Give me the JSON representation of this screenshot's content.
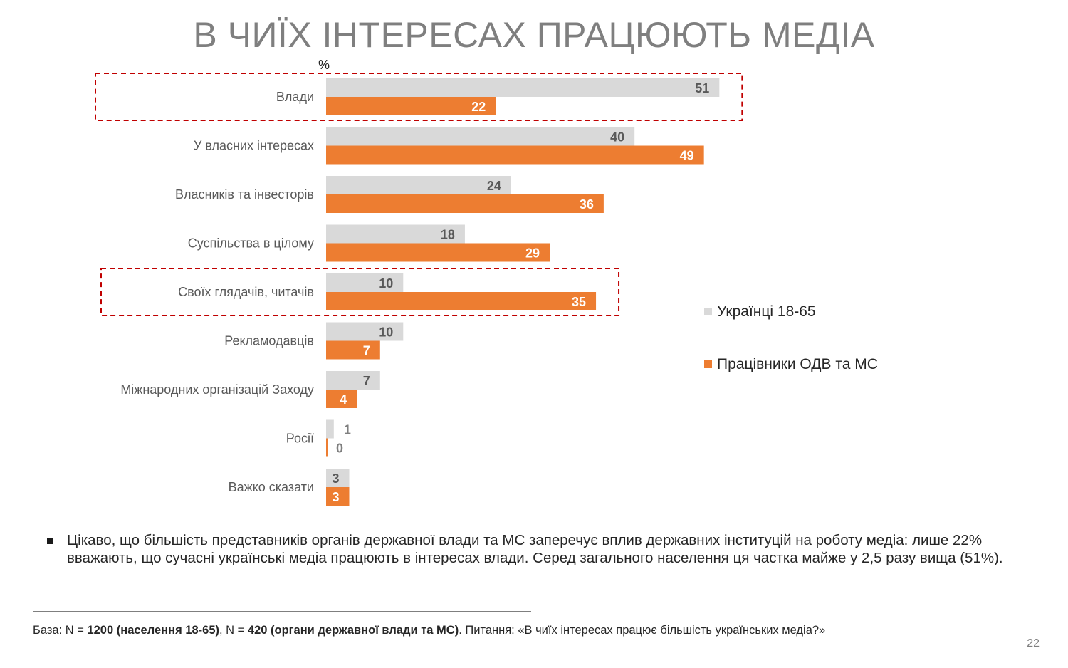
{
  "title": "В ЧИЇХ ІНТЕРЕСАХ ПРАЦЮЮТЬ МЕДІА",
  "chart_data": {
    "type": "bar",
    "orientation": "horizontal",
    "unit_label": "%",
    "categories": [
      "Влади",
      "У власних інтересах",
      "Власників та інвесторів",
      "Суспільства в цілому",
      "Своїх глядачів, читачів",
      "Рекламодавців",
      "Міжнародних організацій Заходу",
      "Росії",
      "Важко сказати"
    ],
    "series": [
      {
        "name": "Українці 18-65",
        "color": "#d9d9d9",
        "values": [
          51,
          40,
          24,
          18,
          10,
          10,
          7,
          1,
          3
        ]
      },
      {
        "name": "Працівники ОДВ та МС",
        "color": "#ed7d31",
        "values": [
          22,
          49,
          36,
          29,
          35,
          7,
          4,
          0,
          3
        ]
      }
    ],
    "highlighted_categories": [
      "Влади",
      "Своїх глядачів, читачів"
    ],
    "highlight_color": "#c00000",
    "legend_position": "right",
    "grid": false
  },
  "note": {
    "text": "Цікаво, що більшість представників органів державної влади та МС заперечує вплив державних інституцій на роботу медіа: лише 22% вважають, що сучасні українські медіа працюють в інтересах влади. Серед загального населення ця частка майже у 2,5 разу вища (51%)."
  },
  "footer": {
    "prefix": "База: N = ",
    "n1": "1200 (населення 18-65)",
    "sep": ", N = ",
    "n2": "420 (органи державної влади та МС)",
    "suffix": ". Питання: «В чиїх інтересах працює більшість українських медіа?»"
  },
  "page_number": "22"
}
